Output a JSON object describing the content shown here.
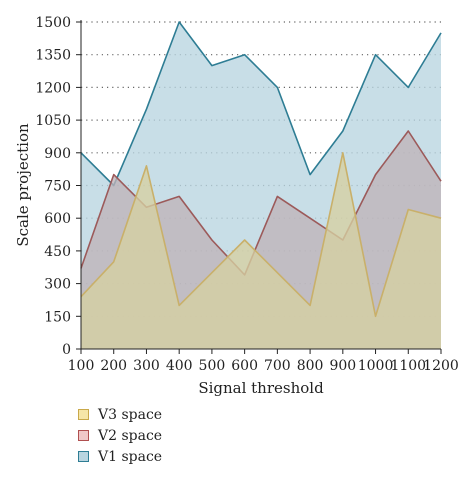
{
  "chart_data": {
    "type": "area",
    "xlabel": "Signal threshold",
    "ylabel": "Scale projection",
    "xlim": [
      100,
      1200
    ],
    "ylim": [
      0,
      1500
    ],
    "x": [
      100,
      200,
      300,
      400,
      500,
      600,
      700,
      800,
      900,
      1000,
      1100,
      1200
    ],
    "x_tick_labels": [
      "100",
      "200",
      "300",
      "400",
      "500",
      "600",
      "700",
      "800",
      "900",
      "1000",
      "1100",
      "1200"
    ],
    "y_ticks": [
      0,
      150,
      300,
      450,
      600,
      750,
      900,
      1050,
      1200,
      1350,
      1500
    ],
    "y_tick_labels": [
      "0",
      "150",
      "300",
      "450",
      "600",
      "750",
      "900",
      "1050",
      "1200",
      "1350",
      "1500"
    ],
    "grid": "horizontal dotted",
    "legend_position": "bottom-left",
    "series": [
      {
        "name": "V1 space",
        "fill": "#b9d5e0",
        "stroke": "#2e7d94",
        "values": [
          900,
          750,
          1100,
          1500,
          1300,
          1350,
          1200,
          800,
          1000,
          1350,
          1200,
          1450
        ]
      },
      {
        "name": "V2 space",
        "fill": "#bfb3b8",
        "stroke": "#9c5a5a",
        "values": [
          370,
          800,
          650,
          700,
          500,
          340,
          700,
          600,
          500,
          800,
          1000,
          770
        ]
      },
      {
        "name": "V3 space",
        "fill": "#d6cfa2",
        "stroke": "#c9b06a",
        "values": [
          240,
          400,
          840,
          200,
          350,
          500,
          350,
          200,
          900,
          150,
          640,
          600
        ]
      }
    ],
    "legend_order": [
      "V3 space",
      "V2 space",
      "V1 space"
    ]
  }
}
